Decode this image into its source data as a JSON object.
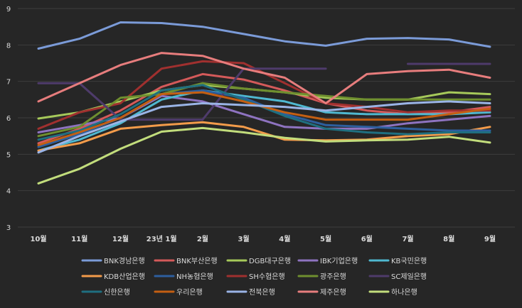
{
  "chart_data": {
    "type": "line",
    "title": "",
    "xlabel": "",
    "ylabel": "",
    "ylim": [
      3,
      9
    ],
    "yticks": [
      "3",
      "4",
      "5",
      "6",
      "7",
      "8",
      "9"
    ],
    "grid": true,
    "legend_position": "bottom",
    "categories": [
      "10월",
      "11월",
      "12월",
      "23년 1월",
      "2월",
      "3월",
      "4월",
      "5월",
      "6월",
      "7월",
      "8월",
      "9월"
    ],
    "series": [
      {
        "name": "BNK경남은행",
        "color": "#7b9bd8",
        "values": [
          7.9,
          8.17,
          8.62,
          8.6,
          8.5,
          8.3,
          8.1,
          7.98,
          8.17,
          8.19,
          8.15,
          7.95
        ]
      },
      {
        "name": "BNK부산은행",
        "color": "#d45a5a",
        "values": [
          5.3,
          5.7,
          6.2,
          6.85,
          7.2,
          7.05,
          6.75,
          6.4,
          6.2,
          6.1,
          6.15,
          6.3
        ]
      },
      {
        "name": "DGB대구은행",
        "color": "#a6c95a",
        "values": [
          5.98,
          6.15,
          6.45,
          6.75,
          6.9,
          6.8,
          6.7,
          6.55,
          6.5,
          6.5,
          6.7,
          6.65
        ]
      },
      {
        "name": "IBK기업은행",
        "color": "#8e73c0",
        "values": [
          5.6,
          5.8,
          6.0,
          6.6,
          6.45,
          6.1,
          5.75,
          5.7,
          5.7,
          5.85,
          5.95,
          6.05
        ]
      },
      {
        "name": "KB국민은행",
        "color": "#4fb8d0",
        "values": [
          5.1,
          5.4,
          5.85,
          6.5,
          6.75,
          6.6,
          6.45,
          6.15,
          6.1,
          6.1,
          6.1,
          6.15
        ]
      },
      {
        "name": "KDB산업은행",
        "color": "#f39b4a",
        "values": [
          5.1,
          5.3,
          5.7,
          5.8,
          5.88,
          5.75,
          5.4,
          5.38,
          5.4,
          5.5,
          5.55,
          5.75
        ]
      },
      {
        "name": "NH농협은행",
        "color": "#2d5f9e",
        "values": [
          5.2,
          5.55,
          6.0,
          6.65,
          6.75,
          6.55,
          6.1,
          5.8,
          5.75,
          5.7,
          5.65,
          5.65
        ]
      },
      {
        "name": "SH수협은행",
        "color": "#a0302f",
        "values": [
          5.7,
          6.15,
          6.4,
          7.35,
          7.55,
          7.5,
          6.95,
          6.4,
          6.3,
          6.15,
          6.2,
          6.2
        ]
      },
      {
        "name": "광주은행",
        "color": "#6f8f2f",
        "values": [
          5.5,
          5.75,
          6.55,
          6.65,
          6.95,
          6.8,
          6.7,
          6.6,
          6.5,
          6.5,
          6.5,
          6.5
        ]
      },
      {
        "name": "SC제일은행",
        "color": "#4e3b6b",
        "values": [
          6.95,
          6.95,
          5.95,
          5.95,
          5.95,
          7.35,
          7.35,
          7.35,
          null,
          7.48,
          7.48,
          7.48
        ]
      },
      {
        "name": "신한은행",
        "color": "#1f6f80",
        "values": [
          5.4,
          5.65,
          6.1,
          6.75,
          6.9,
          6.5,
          6.05,
          5.7,
          5.6,
          5.55,
          5.6,
          5.6
        ]
      },
      {
        "name": "우리은행",
        "color": "#c45f13",
        "values": [
          5.25,
          5.6,
          6.0,
          6.65,
          6.7,
          6.45,
          6.15,
          5.95,
          5.95,
          5.95,
          6.1,
          6.25
        ]
      },
      {
        "name": "전북은행",
        "color": "#9ab4e6",
        "values": [
          5.05,
          5.5,
          5.9,
          6.3,
          6.4,
          6.35,
          6.3,
          6.2,
          6.3,
          6.4,
          6.45,
          6.4
        ]
      },
      {
        "name": "제주은행",
        "color": "#e77d7d",
        "values": [
          6.45,
          6.95,
          7.45,
          7.78,
          7.7,
          7.35,
          7.1,
          6.4,
          7.2,
          7.28,
          7.32,
          7.1
        ]
      },
      {
        "name": "하나은행",
        "color": "#c2dd7c",
        "values": [
          4.2,
          4.6,
          5.15,
          5.62,
          5.72,
          5.6,
          5.45,
          5.35,
          5.38,
          5.4,
          5.48,
          5.32
        ]
      }
    ]
  }
}
